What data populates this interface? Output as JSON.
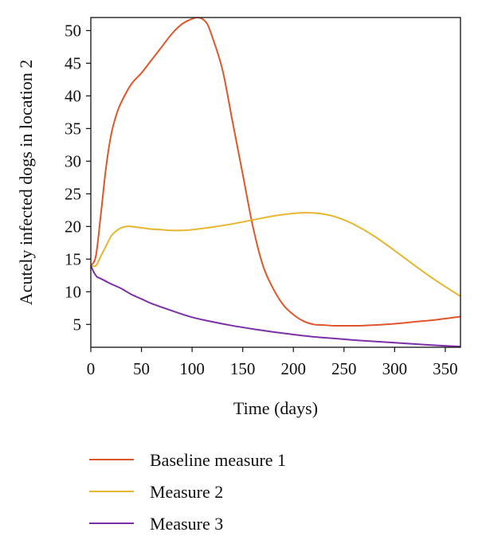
{
  "chart_data": {
    "type": "line",
    "title": "",
    "xlabel": "Time (days)",
    "ylabel": "Acutely infected dogs in location 2",
    "xlim": [
      0,
      365
    ],
    "ylim": [
      1.5,
      52
    ],
    "xticks": [
      0,
      50,
      100,
      150,
      200,
      250,
      300,
      350
    ],
    "yticks": [
      5,
      10,
      15,
      20,
      25,
      30,
      35,
      40,
      45,
      50
    ],
    "grid": false,
    "legend_position": "bottom",
    "series": [
      {
        "name": "Baseline measure 1",
        "color": "#e0562b",
        "x": [
          0,
          5,
          10,
          15,
          20,
          25,
          30,
          40,
          50,
          60,
          70,
          80,
          90,
          100,
          105,
          110,
          115,
          120,
          130,
          140,
          150,
          160,
          170,
          180,
          190,
          200,
          210,
          220,
          230,
          240,
          250,
          265,
          280,
          300,
          320,
          340,
          365
        ],
        "values": [
          14,
          15.5,
          22,
          29,
          34,
          37,
          39,
          41.8,
          43.5,
          45.5,
          47.5,
          49.5,
          51,
          51.8,
          52,
          51.8,
          51,
          49,
          44,
          36,
          28,
          20,
          14,
          10.5,
          8,
          6.5,
          5.5,
          5,
          4.9,
          4.8,
          4.8,
          4.8,
          4.9,
          5.1,
          5.4,
          5.7,
          6.2
        ]
      },
      {
        "name": "Measure 2",
        "color": "#e8b52e",
        "x": [
          0,
          5,
          10,
          15,
          20,
          25,
          30,
          35,
          40,
          50,
          60,
          70,
          80,
          90,
          100,
          120,
          140,
          160,
          180,
          200,
          215,
          230,
          245,
          260,
          280,
          300,
          320,
          340,
          365
        ],
        "values": [
          14,
          14,
          15.5,
          17,
          18.5,
          19.3,
          19.8,
          20,
          20,
          19.8,
          19.6,
          19.5,
          19.4,
          19.4,
          19.5,
          19.9,
          20.4,
          21,
          21.6,
          22,
          22.1,
          21.9,
          21.3,
          20.3,
          18.5,
          16.3,
          14,
          11.8,
          9.3
        ]
      },
      {
        "name": "Measure 3",
        "color": "#7c2fa6",
        "x": [
          0,
          3,
          6,
          10,
          15,
          20,
          30,
          40,
          50,
          60,
          80,
          100,
          120,
          140,
          160,
          180,
          200,
          220,
          240,
          260,
          280,
          300,
          320,
          340,
          365
        ],
        "values": [
          14,
          13,
          12.3,
          12,
          11.6,
          11.2,
          10.5,
          9.6,
          8.9,
          8.2,
          7.1,
          6.1,
          5.4,
          4.8,
          4.3,
          3.85,
          3.45,
          3.1,
          2.85,
          2.6,
          2.4,
          2.2,
          2.0,
          1.8,
          1.6
        ]
      }
    ]
  }
}
